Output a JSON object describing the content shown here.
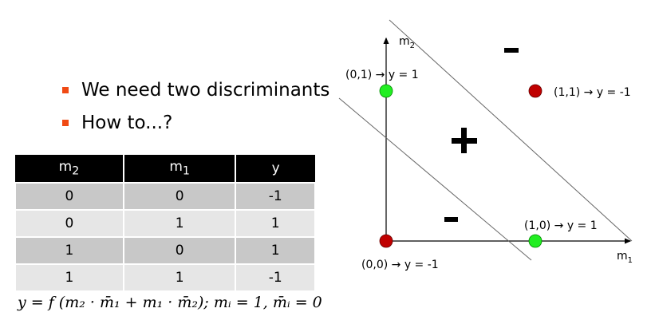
{
  "bullets": [
    "We need two discriminants",
    "How to...?"
  ],
  "table": {
    "headers": [
      {
        "base": "m",
        "sub": "2"
      },
      {
        "base": "m",
        "sub": "1"
      },
      {
        "base": "y",
        "sub": ""
      }
    ],
    "rows": [
      [
        "0",
        "0",
        "-1"
      ],
      [
        "0",
        "1",
        "1"
      ],
      [
        "1",
        "0",
        "1"
      ],
      [
        "1",
        "1",
        "-1"
      ]
    ]
  },
  "formula": "y = f (m₂ · m̄₁ + m₁ · m̄₂);   mᵢ = 1, m̄ᵢ = 0",
  "diagram": {
    "x_axis": {
      "base": "m",
      "sub": "1"
    },
    "y_axis": {
      "base": "m",
      "sub": "2"
    },
    "points": [
      {
        "label": "(0,0) → y = -1",
        "color": "#c00000"
      },
      {
        "label": "(0,1) → y = 1",
        "color": "#22ee22"
      },
      {
        "label": "(1,0) → y = 1",
        "color": "#22ee22"
      },
      {
        "label": "(1,1) → y = -1",
        "color": "#c00000"
      }
    ],
    "regions": {
      "top": "-",
      "middle": "+",
      "bottom": "-"
    }
  }
}
